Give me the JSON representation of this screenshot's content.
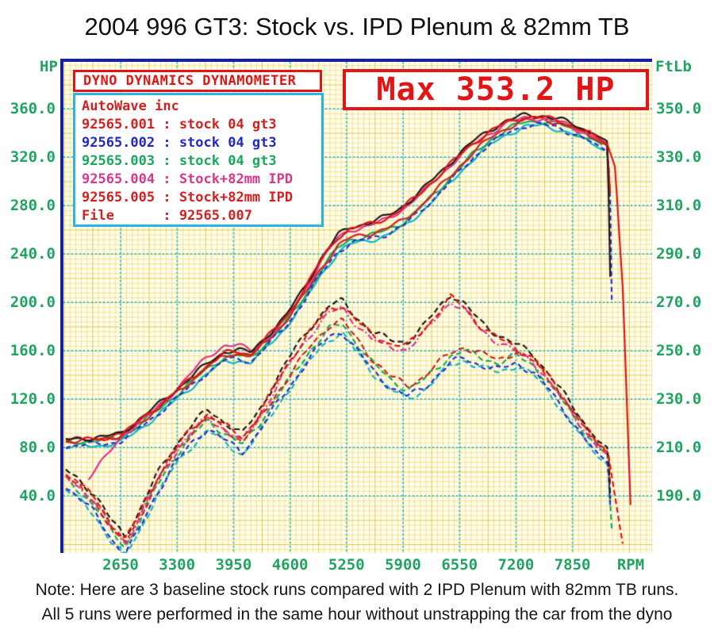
{
  "title": "2004 996 GT3: Stock vs. IPD Plenum & 82mm TB",
  "banner": {
    "max_label": "Max 353.2 HP",
    "color": "#e21414"
  },
  "legend": {
    "header": "DYNO DYNAMICS DYNAMOMETER",
    "rows": [
      {
        "text": "AutoWave inc",
        "color": "#d42020"
      },
      {
        "text": "92565.001 : stock 04 gt3",
        "color": "#d42020"
      },
      {
        "text": "92565.002 : stock 04 gt3",
        "color": "#2228c8"
      },
      {
        "text": "92565.003 : stock 04 gt3",
        "color": "#18a85c"
      },
      {
        "text": "92565.004 : Stock+82mm IPD",
        "color": "#d8388c"
      },
      {
        "text": "92565.005 : Stock+82mm IPD",
        "color": "#d42020"
      },
      {
        "text": "File      : 92565.007",
        "color": "#d42020"
      }
    ]
  },
  "axes": {
    "left_title": "HP",
    "right_title": "FtLb",
    "bottom_title": "RPM",
    "left_ticks": [
      "360.0",
      "320.0",
      "280.0",
      "240.0",
      "200.0",
      "160.0",
      "120.0",
      "80.0",
      "40.0"
    ],
    "left_values": [
      360,
      320,
      280,
      240,
      200,
      160,
      120,
      80,
      40
    ],
    "right_ticks": [
      "350.0",
      "330.0",
      "310.0",
      "290.0",
      "270.0",
      "250.0",
      "230.0",
      "210.0",
      "190.0"
    ],
    "right_values": [
      350,
      330,
      310,
      290,
      270,
      250,
      230,
      210,
      190
    ],
    "bottom_ticks": [
      "2650",
      "3300",
      "3950",
      "4600",
      "5250",
      "5900",
      "6550",
      "7200",
      "7850"
    ],
    "bottom_values": [
      2650,
      3300,
      3950,
      4600,
      5250,
      5900,
      6550,
      7200,
      7850
    ],
    "label_color": "#1fa55f",
    "grid_minor_color": "#e8d650",
    "grid_major_color": "#2cc4e4",
    "plot_bg": "#fffdf2",
    "border_color": "#1620a2"
  },
  "notes": [
    "Note: Here are 3 baseline stock runs compared with 2 IPD Plenum with 82mm TB runs.",
    "All 5 runs were performed in the same hour without unstrapping the car from the dyno"
  ],
  "chart_data": {
    "type": "line",
    "title": "2004 996 GT3: Stock vs. IPD Plenum & 82mm TB",
    "xlabel": "RPM",
    "ylabel_left": "HP",
    "ylabel_right": "FtLb",
    "x_range": [
      1890,
      8760
    ],
    "left_axis_range_hp": [
      20,
      372
    ],
    "right_axis_range_ftlb": [
      156,
      356
    ],
    "max_hp": 353.2,
    "grid": true,
    "legend_position": "top-left",
    "shapes": {
      "stock_hp": [
        [
          2020,
          84
        ],
        [
          2200,
          85
        ],
        [
          2450,
          86
        ],
        [
          2650,
          88
        ],
        [
          2850,
          98
        ],
        [
          3050,
          109
        ],
        [
          3250,
          121
        ],
        [
          3450,
          133
        ],
        [
          3650,
          145
        ],
        [
          3850,
          155
        ],
        [
          4000,
          156
        ],
        [
          4150,
          154
        ],
        [
          4350,
          168
        ],
        [
          4550,
          183
        ],
        [
          4750,
          203
        ],
        [
          4950,
          226
        ],
        [
          5150,
          245
        ],
        [
          5300,
          252
        ],
        [
          5500,
          255
        ],
        [
          5700,
          259
        ],
        [
          5900,
          266
        ],
        [
          6100,
          278
        ],
        [
          6300,
          292
        ],
        [
          6500,
          307
        ],
        [
          6700,
          322
        ],
        [
          6900,
          334
        ],
        [
          7100,
          343
        ],
        [
          7300,
          349
        ],
        [
          7500,
          350
        ],
        [
          7700,
          347
        ],
        [
          7900,
          341
        ],
        [
          8100,
          334
        ],
        [
          8250,
          328
        ]
      ],
      "ipd_hp": [
        [
          2020,
          85
        ],
        [
          2200,
          86
        ],
        [
          2450,
          87
        ],
        [
          2650,
          90
        ],
        [
          2850,
          101
        ],
        [
          3050,
          112
        ],
        [
          3250,
          124
        ],
        [
          3450,
          136
        ],
        [
          3650,
          148
        ],
        [
          3850,
          158
        ],
        [
          4000,
          159
        ],
        [
          4150,
          157
        ],
        [
          4350,
          172
        ],
        [
          4550,
          187
        ],
        [
          4750,
          209
        ],
        [
          4950,
          234
        ],
        [
          5150,
          254
        ],
        [
          5300,
          261
        ],
        [
          5500,
          264
        ],
        [
          5700,
          269
        ],
        [
          5900,
          278
        ],
        [
          6100,
          290
        ],
        [
          6300,
          304
        ],
        [
          6500,
          318
        ],
        [
          6700,
          331
        ],
        [
          6900,
          341
        ],
        [
          7100,
          349
        ],
        [
          7300,
          353
        ],
        [
          7500,
          353
        ],
        [
          7700,
          350
        ],
        [
          7900,
          344
        ],
        [
          8100,
          338
        ],
        [
          8250,
          331
        ]
      ],
      "stock_tq": [
        [
          2020,
          197
        ],
        [
          2150,
          193
        ],
        [
          2350,
          186
        ],
        [
          2550,
          175
        ],
        [
          2700,
          169
        ],
        [
          2850,
          178
        ],
        [
          3050,
          193
        ],
        [
          3250,
          205
        ],
        [
          3450,
          214
        ],
        [
          3650,
          221
        ],
        [
          3850,
          216
        ],
        [
          4050,
          211
        ],
        [
          4250,
          220
        ],
        [
          4450,
          231
        ],
        [
          4650,
          241
        ],
        [
          4850,
          251
        ],
        [
          5050,
          259
        ],
        [
          5200,
          261
        ],
        [
          5350,
          254
        ],
        [
          5550,
          245
        ],
        [
          5750,
          238
        ],
        [
          5950,
          234
        ],
        [
          6150,
          238
        ],
        [
          6300,
          243
        ],
        [
          6450,
          248
        ],
        [
          6600,
          250
        ],
        [
          6800,
          247
        ],
        [
          7000,
          245
        ],
        [
          7200,
          248
        ],
        [
          7400,
          244
        ],
        [
          7600,
          236
        ],
        [
          7800,
          226
        ],
        [
          8000,
          216
        ],
        [
          8150,
          210
        ],
        [
          8260,
          207
        ]
      ],
      "ipd_tq": [
        [
          2020,
          199
        ],
        [
          2150,
          196
        ],
        [
          2350,
          189
        ],
        [
          2550,
          178
        ],
        [
          2700,
          172
        ],
        [
          2850,
          181
        ],
        [
          3050,
          196
        ],
        [
          3250,
          208
        ],
        [
          3450,
          217
        ],
        [
          3650,
          224
        ],
        [
          3850,
          219
        ],
        [
          4050,
          214
        ],
        [
          4250,
          224
        ],
        [
          4450,
          237
        ],
        [
          4650,
          249
        ],
        [
          4850,
          259
        ],
        [
          5050,
          267
        ],
        [
          5200,
          269
        ],
        [
          5350,
          263
        ],
        [
          5550,
          256
        ],
        [
          5750,
          253
        ],
        [
          5950,
          252
        ],
        [
          6150,
          259
        ],
        [
          6300,
          266
        ],
        [
          6450,
          272
        ],
        [
          6600,
          268
        ],
        [
          6800,
          260
        ],
        [
          7000,
          255
        ],
        [
          7200,
          251
        ],
        [
          7400,
          247
        ],
        [
          7600,
          238
        ],
        [
          7800,
          228
        ],
        [
          8000,
          218
        ],
        [
          8150,
          211
        ],
        [
          8260,
          208
        ]
      ]
    },
    "runs": [
      {
        "file": "92565.001",
        "label": "stock 04 gt3",
        "color": "#d42020",
        "type": "stock",
        "hp_off": 1.5,
        "tq_off": 1.5,
        "hp_dash": [],
        "tq_dash": [
          7,
          4
        ],
        "tail_hp": [
          [
            8300,
            272
          ]
        ],
        "tail_tq": [
          [
            8300,
            186
          ]
        ]
      },
      {
        "file": "92565.002",
        "label": "stock 04 gt3",
        "color": "#2a2fd0",
        "type": "stock",
        "hp_off": -3,
        "tq_off": -3,
        "hp_dash": [
          6,
          4
        ],
        "tq_dash": [
          6,
          4
        ],
        "tail_hp": [
          [
            8280,
            302
          ],
          [
            8295,
            232
          ],
          [
            8305,
            190
          ]
        ],
        "tail_tq": [
          [
            8290,
            181
          ],
          [
            8300,
            168
          ]
        ]
      },
      {
        "file": "92565.003",
        "label": "stock 04 gt3",
        "color": "#18a85c",
        "type": "stock",
        "hp_off": 0,
        "tq_off": 0,
        "hp_dash": [],
        "tq_dash": [
          7,
          4
        ],
        "tail_hp": [
          [
            8200,
            302
          ]
        ],
        "tail_tq": [
          [
            8290,
            182
          ],
          [
            8310,
            172
          ]
        ],
        "echo": {
          "color": "#10b7c9",
          "hp_off": -4,
          "tq_off": -4,
          "tail_hp": [
            [
              8220,
              290
            ]
          ],
          "tail_tq": [
            [
              8300,
              176
            ]
          ]
        }
      },
      {
        "file": "92565.004",
        "label": "Stock+82mm IPD",
        "color": "#d8388c",
        "type": "ipd",
        "hp_off": -1,
        "tq_off": -1.5,
        "hp_dash": [],
        "tq_dash": [
          8,
          3,
          2,
          3
        ],
        "hp_pre": [
          [
            2280,
            55
          ],
          [
            2480,
            72
          ],
          [
            2700,
            92
          ]
        ],
        "hp_bump": [
          3150,
          4350,
          8
        ],
        "tail_hp": [
          [
            8225,
            312
          ],
          [
            8235,
            296
          ]
        ],
        "tail_tq": [
          [
            8250,
            192
          ]
        ]
      },
      {
        "file": "92565.005",
        "label": "Stock+82mm IPD",
        "color": "#e01414",
        "type": "ipd",
        "hp_off": 0,
        "tq_off": 0,
        "hp_dash": [],
        "tq_dash": [
          7,
          4
        ],
        "tail_hp": [
          [
            8340,
            312
          ],
          [
            8430,
            210
          ],
          [
            8520,
            28
          ]
        ],
        "tail_tq": [
          [
            8330,
            192
          ],
          [
            8430,
            170
          ]
        ],
        "echo": {
          "color": "#201a18",
          "hp_off": 1.5,
          "tq_off": 1.5,
          "tail_hp": [
            [
              8280,
              250
            ],
            [
              8292,
              162
            ]
          ],
          "tail_tq": [
            [
              8300,
              175
            ]
          ]
        }
      }
    ]
  }
}
